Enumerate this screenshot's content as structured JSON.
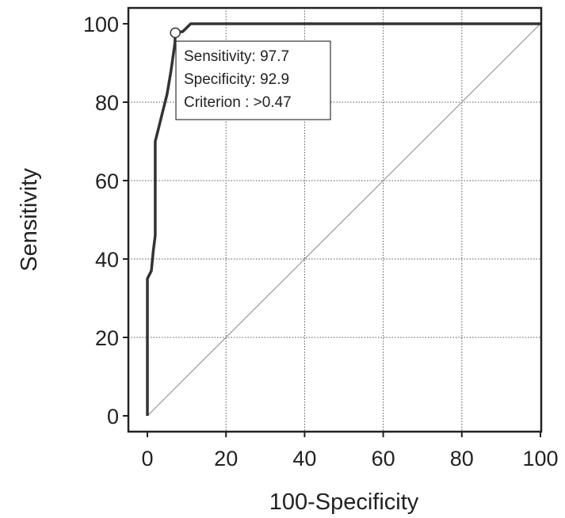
{
  "chart_data": {
    "type": "line",
    "title": "",
    "xlabel": "100-Specificity",
    "ylabel": "Sensitivity",
    "xlim": [
      0,
      100
    ],
    "ylim": [
      0,
      100
    ],
    "xticks": [
      0,
      20,
      40,
      60,
      80,
      100
    ],
    "yticks": [
      0,
      20,
      40,
      60,
      80,
      100
    ],
    "grid": true,
    "series": [
      {
        "points": [
          [
            0,
            0
          ],
          [
            0,
            35
          ],
          [
            1,
            37
          ],
          [
            1.5,
            42
          ],
          [
            2,
            46
          ],
          [
            2,
            70
          ],
          [
            3,
            74
          ],
          [
            4,
            78
          ],
          [
            5,
            82
          ],
          [
            6,
            88
          ],
          [
            7,
            95
          ],
          [
            7.1,
            97.7
          ],
          [
            9,
            98
          ],
          [
            11,
            100
          ],
          [
            100,
            100
          ]
        ],
        "color": "#333333"
      },
      {
        "points": [
          [
            0,
            0
          ],
          [
            100,
            100
          ]
        ],
        "color": "#888888"
      }
    ],
    "highlight_point": {
      "x": 7.1,
      "y": 97.7
    },
    "annotation": {
      "lines": [
        "Sensitivity: 97.7",
        "Specificity: 92.9",
        "Criterion : >0.47"
      ]
    }
  }
}
